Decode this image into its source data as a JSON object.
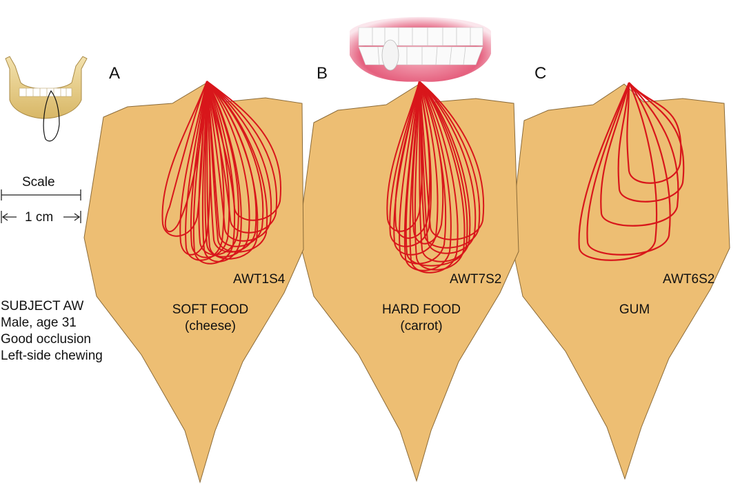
{
  "panels": [
    {
      "letter": "A",
      "code": "AWT1S4",
      "food": "SOFT FOOD",
      "food_note": "(cheese)"
    },
    {
      "letter": "B",
      "code": "AWT7S2",
      "food": "HARD FOOD",
      "food_note": "(carrot)"
    },
    {
      "letter": "C",
      "code": "AWT6S2",
      "food": "GUM",
      "food_note": ""
    }
  ],
  "scale": {
    "title": "Scale",
    "value": "1 cm"
  },
  "subject": {
    "lines": [
      "SUBJECT AW",
      "Male, age 31",
      "Good occlusion",
      "Left-side chewing"
    ]
  },
  "colors": {
    "shape_fill": "#EDBE73",
    "shape_stroke": "#8a6a38",
    "trace": "#D8161B",
    "mandible": "#E8CF8E",
    "gum": "#E9738A"
  },
  "icons": {
    "mandible": "mandible-icon",
    "teeth": "teeth-icon"
  }
}
